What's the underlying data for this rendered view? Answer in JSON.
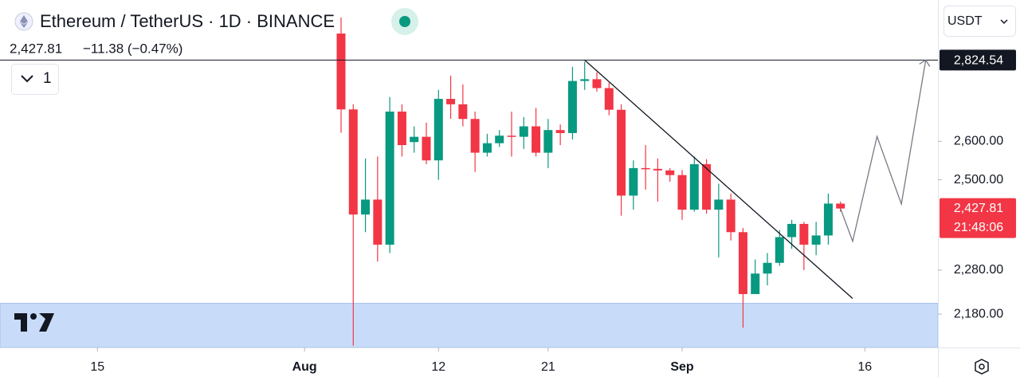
{
  "header": {
    "symbol": "Ethereum / TetherUS · 1D · BINANCE",
    "price": "2,427.81",
    "change": "−11.38 (−0.47%)",
    "indicators": "1",
    "currency": "USDT"
  },
  "chart_data": {
    "type": "candlestick",
    "x": [
      "Aug 4",
      "Aug 5",
      "Aug 6",
      "Aug 7",
      "Aug 8",
      "Aug 9",
      "Aug 10",
      "Aug 11",
      "Aug 12",
      "Aug 13",
      "Aug 14",
      "Aug 15",
      "Aug 16",
      "Aug 17",
      "Aug 18",
      "Aug 19",
      "Aug 20",
      "Aug 21",
      "Aug 22",
      "Aug 23",
      "Aug 24",
      "Aug 25",
      "Aug 26",
      "Aug 27",
      "Aug 28",
      "Aug 29",
      "Aug 30",
      "Aug 31",
      "Sep 1",
      "Sep 2",
      "Sep 3",
      "Sep 4",
      "Sep 5",
      "Sep 6",
      "Sep 7",
      "Sep 8",
      "Sep 9",
      "Sep 10",
      "Sep 11",
      "Sep 12",
      "Sep 13",
      "Sep 14"
    ],
    "open": [
      2902,
      2686,
      2413,
      2450,
      2340,
      2680,
      2598,
      2612,
      2550,
      2715,
      2700,
      2660,
      2570,
      2595,
      2615,
      2612,
      2640,
      2570,
      2630,
      2622,
      2765,
      2770,
      2745,
      2685,
      2460,
      2530,
      2528,
      2524,
      2512,
      2425,
      2540,
      2425,
      2450,
      2370,
      2225,
      2272,
      2297,
      2358,
      2390,
      2340,
      2362,
      2440
    ],
    "high": [
      2950,
      2700,
      2555,
      2560,
      2720,
      2700,
      2640,
      2650,
      2740,
      2780,
      2755,
      2680,
      2620,
      2630,
      2680,
      2665,
      2690,
      2660,
      2645,
      2805,
      2820,
      2790,
      2760,
      2700,
      2550,
      2590,
      2555,
      2530,
      2525,
      2560,
      2553,
      2490,
      2465,
      2380,
      2305,
      2320,
      2375,
      2400,
      2395,
      2395,
      2465,
      2445
    ],
    "low": [
      2623,
      2111,
      2370,
      2300,
      2320,
      2560,
      2570,
      2540,
      2500,
      2660,
      2640,
      2520,
      2560,
      2585,
      2560,
      2580,
      2560,
      2530,
      2590,
      2605,
      2740,
      2735,
      2670,
      2410,
      2425,
      2475,
      2445,
      2495,
      2400,
      2420,
      2415,
      2310,
      2350,
      2150,
      2225,
      2245,
      2290,
      2330,
      2280,
      2315,
      2340,
      2420
    ],
    "close": [
      2686,
      2413,
      2450,
      2340,
      2680,
      2590,
      2612,
      2550,
      2715,
      2700,
      2660,
      2570,
      2595,
      2615,
      2612,
      2640,
      2570,
      2630,
      2622,
      2765,
      2770,
      2745,
      2685,
      2460,
      2530,
      2528,
      2524,
      2512,
      2425,
      2540,
      2425,
      2450,
      2370,
      2225,
      2272,
      2297,
      2358,
      2390,
      2340,
      2362,
      2440,
      2427.81
    ],
    "up_color": "#089981",
    "down_color": "#f23645",
    "log_scale": true,
    "xlim": [
      "Jul 7",
      "Sep 22"
    ],
    "ylim": [
      2107,
      3003
    ],
    "xticks": [
      {
        "value": "Jul 15",
        "label": "15"
      },
      {
        "value": "Aug 1",
        "label": "Aug"
      },
      {
        "value": "Aug 12",
        "label": "12"
      },
      {
        "value": "Aug 21",
        "label": "21"
      },
      {
        "value": "Sep 1",
        "label": "Sep"
      },
      {
        "value": "Sep 16",
        "label": "16"
      }
    ],
    "yticks": [
      {
        "value": 2600,
        "label": "2,600.00"
      },
      {
        "value": 2500,
        "label": "2,500.00"
      },
      {
        "value": 2280,
        "label": "2,280.00"
      },
      {
        "value": 2180,
        "label": "2,180.00"
      }
    ],
    "last_price": {
      "value": 2427.81,
      "label": "2,427.81"
    },
    "countdown": "21:48:06",
    "level": {
      "value": 2824.54,
      "label": "2,824.54"
    },
    "trend_line": {
      "x": [
        "Aug 24",
        "Sep 15"
      ],
      "y": [
        2824.54,
        2215
      ]
    },
    "projection": {
      "x": [
        "Sep 14",
        "Sep 15",
        "Sep 17",
        "Sep 19",
        "Sep 21"
      ],
      "y": [
        2427.81,
        2348,
        2613,
        2439,
        2824.54
      ]
    },
    "zone": [
      2107,
      2204
    ]
  }
}
